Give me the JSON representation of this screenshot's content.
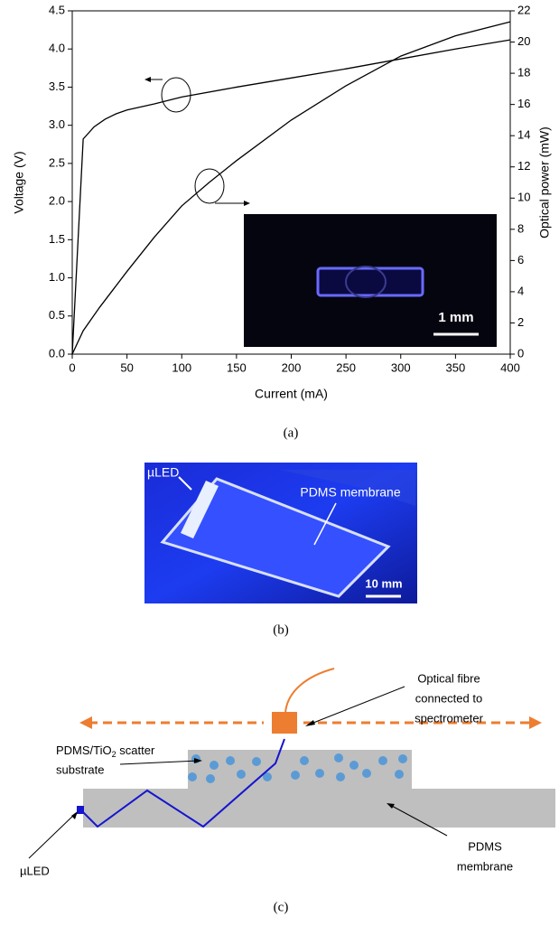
{
  "chart_data": {
    "type": "line",
    "xlabel": "Current (mA)",
    "ylabel": "Voltage (V)",
    "y2label": "Optical power (mW)",
    "xlim": [
      0,
      400
    ],
    "xticks": [
      0,
      50,
      100,
      150,
      200,
      250,
      300,
      350,
      400
    ],
    "ylim": [
      0,
      4.5
    ],
    "yticks": [
      {
        "value": 0,
        "label": "0.0"
      },
      0.5,
      {
        "value": 1,
        "label": "1.0"
      },
      1.5,
      {
        "value": 2,
        "label": "2.0"
      },
      2.5,
      {
        "value": 3,
        "label": "3.0"
      },
      3.5,
      {
        "value": 4,
        "label": "4.0"
      },
      4.5
    ],
    "y2lim": [
      0,
      22
    ],
    "y2ticks": [
      0,
      2,
      4,
      6,
      8,
      10,
      12,
      14,
      16,
      18,
      20,
      22
    ],
    "grid": false,
    "series": [
      {
        "color": "#000000",
        "x": [
          0,
          10,
          20,
          30,
          40,
          50,
          75,
          100,
          150,
          200,
          250,
          300,
          350,
          400
        ],
        "values": [
          0,
          2.82,
          2.98,
          3.08,
          3.15,
          3.2,
          3.28,
          3.37,
          3.5,
          3.62,
          3.74,
          3.87,
          4.0,
          4.12
        ]
      },
      {
        "color": "#000000",
        "axis": "y2",
        "x": [
          0,
          10,
          25,
          50,
          75,
          100,
          125,
          150,
          200,
          250,
          300,
          350,
          400
        ],
        "values": [
          0,
          1.5,
          3,
          5.3,
          7.5,
          9.5,
          11,
          12.4,
          15,
          17.2,
          19.1,
          20.4,
          21.3
        ]
      }
    ],
    "inset": {
      "scale_label": "1 mm"
    }
  },
  "photo": {
    "led_label": "µLED",
    "membrane_label": "PDMS membrane",
    "scale_label": "10 mm"
  },
  "diagram": {
    "fibre_lines": [
      "Optical fibre",
      "connected to",
      "spectrometer"
    ],
    "substrate": {
      "before": "PDMS/TiO",
      "subscript": "2",
      "after": " scatter",
      "line2": "substrate"
    },
    "led_label": "µLED",
    "membrane_lines": [
      "PDMS",
      "membrane"
    ]
  },
  "captions": [
    "(a)",
    "(b)",
    "(c)"
  ]
}
